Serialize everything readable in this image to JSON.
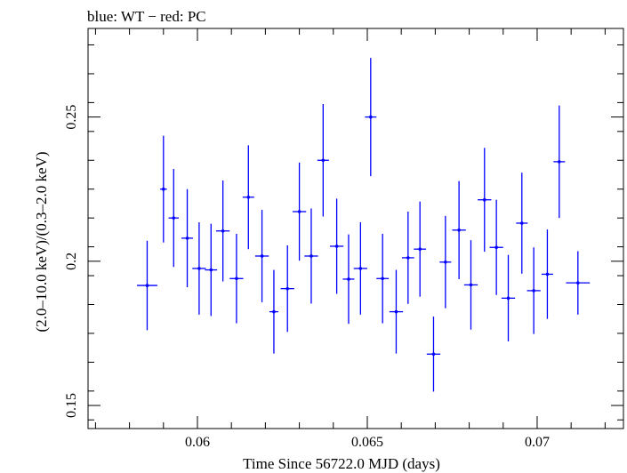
{
  "chart_data": {
    "type": "scatter",
    "title": "blue: WT − red: PC",
    "xlabel": "Time Since 56722.0 MJD (days)",
    "ylabel": "(2.0–10.0 keV)/(0.3–2.0 keV)",
    "xlim": [
      0.05678,
      0.07254
    ],
    "ylim": [
      0.142,
      0.2807
    ],
    "x_ticks": [
      0.06,
      0.065,
      0.07
    ],
    "x_tick_labels": [
      "0.06",
      "0.065",
      "0.07"
    ],
    "y_ticks": [
      0.15,
      0.2,
      0.25
    ],
    "y_tick_labels": [
      "0.15",
      "0.2",
      "0.25"
    ],
    "grid": false,
    "series": [
      {
        "color": "#0000ff",
        "points": [
          {
            "x": 0.05852,
            "xerr": 0.0003,
            "y": 0.1916,
            "yerr": 0.0155
          },
          {
            "x": 0.059,
            "xerr": 0.0001,
            "y": 0.225,
            "yerr": 0.0185
          },
          {
            "x": 0.0593,
            "xerr": 0.00015,
            "y": 0.215,
            "yerr": 0.017
          },
          {
            "x": 0.0597,
            "xerr": 0.00017,
            "y": 0.208,
            "yerr": 0.017
          },
          {
            "x": 0.06005,
            "xerr": 0.0002,
            "y": 0.1975,
            "yerr": 0.016
          },
          {
            "x": 0.0604,
            "xerr": 0.00018,
            "y": 0.197,
            "yerr": 0.016
          },
          {
            "x": 0.06075,
            "xerr": 0.0002,
            "y": 0.2105,
            "yerr": 0.0175
          },
          {
            "x": 0.06115,
            "xerr": 0.0002,
            "y": 0.194,
            "yerr": 0.0155
          },
          {
            "x": 0.0615,
            "xerr": 0.00017,
            "y": 0.2222,
            "yerr": 0.018
          },
          {
            "x": 0.0619,
            "xerr": 0.0002,
            "y": 0.2018,
            "yerr": 0.016
          },
          {
            "x": 0.06225,
            "xerr": 0.00013,
            "y": 0.1825,
            "yerr": 0.0145
          },
          {
            "x": 0.06265,
            "xerr": 0.0002,
            "y": 0.1905,
            "yerr": 0.015
          },
          {
            "x": 0.063,
            "xerr": 0.0002,
            "y": 0.2172,
            "yerr": 0.017
          },
          {
            "x": 0.06335,
            "xerr": 0.0002,
            "y": 0.2018,
            "yerr": 0.0165
          },
          {
            "x": 0.0637,
            "xerr": 0.00017,
            "y": 0.235,
            "yerr": 0.0195
          },
          {
            "x": 0.0641,
            "xerr": 0.0002,
            "y": 0.2052,
            "yerr": 0.0165
          },
          {
            "x": 0.06445,
            "xerr": 0.00017,
            "y": 0.1938,
            "yerr": 0.0155
          },
          {
            "x": 0.0648,
            "xerr": 0.0002,
            "y": 0.1975,
            "yerr": 0.016
          },
          {
            "x": 0.0651,
            "xerr": 0.00017,
            "y": 0.25,
            "yerr": 0.0205
          },
          {
            "x": 0.06545,
            "xerr": 0.00018,
            "y": 0.194,
            "yerr": 0.0155
          },
          {
            "x": 0.06585,
            "xerr": 0.0002,
            "y": 0.1825,
            "yerr": 0.0145
          },
          {
            "x": 0.0662,
            "xerr": 0.00018,
            "y": 0.2012,
            "yerr": 0.016
          },
          {
            "x": 0.06655,
            "xerr": 0.00018,
            "y": 0.2042,
            "yerr": 0.0165
          },
          {
            "x": 0.06695,
            "xerr": 0.0002,
            "y": 0.1678,
            "yerr": 0.013
          },
          {
            "x": 0.0673,
            "xerr": 0.00017,
            "y": 0.1997,
            "yerr": 0.016
          },
          {
            "x": 0.0677,
            "xerr": 0.0002,
            "y": 0.2108,
            "yerr": 0.017
          },
          {
            "x": 0.06805,
            "xerr": 0.0002,
            "y": 0.1918,
            "yerr": 0.0155
          },
          {
            "x": 0.06845,
            "xerr": 0.0002,
            "y": 0.2213,
            "yerr": 0.018
          },
          {
            "x": 0.0688,
            "xerr": 0.0002,
            "y": 0.2048,
            "yerr": 0.0165
          },
          {
            "x": 0.06915,
            "xerr": 0.0002,
            "y": 0.1872,
            "yerr": 0.015
          },
          {
            "x": 0.06955,
            "xerr": 0.00017,
            "y": 0.2132,
            "yerr": 0.0175
          },
          {
            "x": 0.0699,
            "xerr": 0.0002,
            "y": 0.1898,
            "yerr": 0.015
          },
          {
            "x": 0.0703,
            "xerr": 0.00017,
            "y": 0.1955,
            "yerr": 0.0155
          },
          {
            "x": 0.07065,
            "xerr": 0.00017,
            "y": 0.2345,
            "yerr": 0.0195
          },
          {
            "x": 0.0712,
            "xerr": 0.00035,
            "y": 0.1925,
            "yerr": 0.011
          }
        ]
      }
    ]
  }
}
